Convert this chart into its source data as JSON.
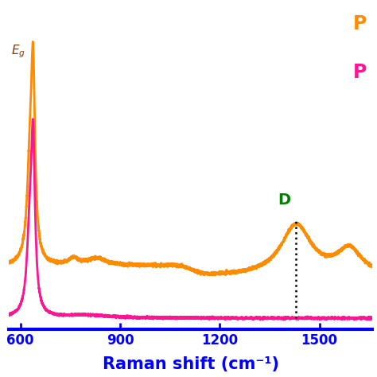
{
  "xlabel": "Raman shift (cm⁻¹)",
  "xlabel_color": "#0000ff",
  "xlabel_fontsize": 15,
  "xlabel_fontweight": "bold",
  "xlim": [
    565,
    1660
  ],
  "ylim": [
    -0.03,
    1.1
  ],
  "xticks": [
    600,
    900,
    1200,
    1500
  ],
  "axis_color": "#0000ff",
  "bg_color": "#ffffff",
  "D_color": "#008000",
  "dotted_line_x": 1430,
  "orange_color": "#FF8C00",
  "pink_color": "#FF1493",
  "Eg_color": "#8B3A00"
}
